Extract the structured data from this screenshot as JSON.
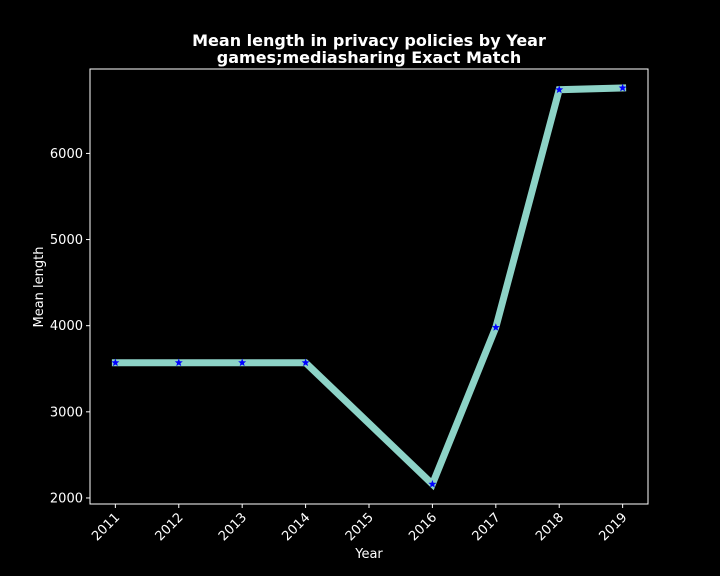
{
  "chart_data": {
    "type": "line",
    "title_line1": "Mean length in privacy policies by Year",
    "title_line2": "games;mediasharing Exact Match",
    "xlabel": "Year",
    "ylabel": "Mean length",
    "x": [
      2011,
      2012,
      2013,
      2014,
      2016,
      2017,
      2018,
      2019
    ],
    "y": [
      3570,
      3570,
      3570,
      3570,
      2160,
      3980,
      6740,
      6760
    ],
    "xticks": [
      "2011",
      "2012",
      "2013",
      "2014",
      "2015",
      "2016",
      "2017",
      "2018",
      "2019"
    ],
    "yticks": [
      "2000",
      "3000",
      "4000",
      "5000",
      "6000"
    ],
    "xlim": [
      2010.6,
      2019.4
    ],
    "ylim": [
      1930,
      6980
    ],
    "grid": false,
    "line_color": "#8dd3c7",
    "marker_color": "#0000ff",
    "marker": "star",
    "background": "#000000",
    "axes_color": "#ffffff"
  }
}
